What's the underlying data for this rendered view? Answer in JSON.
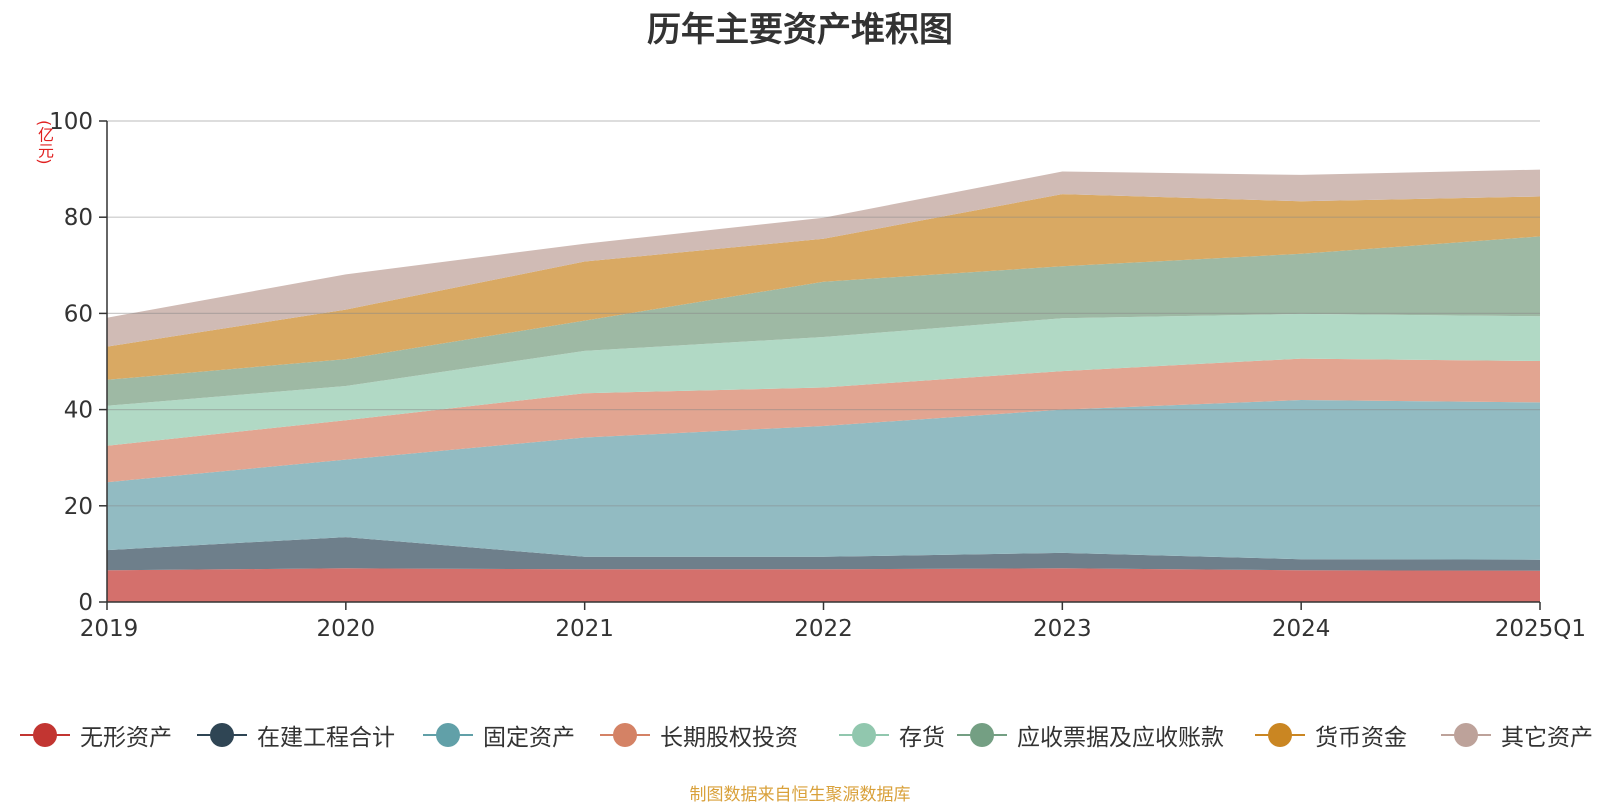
{
  "title": "历年主要资产堆积图",
  "unit_label": "(亿元)",
  "source": "制图数据来自恒生聚源数据库",
  "chart_data": {
    "type": "area",
    "stacked": true,
    "categories": [
      "2019",
      "2020",
      "2021",
      "2022",
      "2023",
      "2024",
      "2025Q1"
    ],
    "ylim": [
      0,
      100
    ],
    "yticks": [
      0,
      20,
      40,
      60,
      80,
      100
    ],
    "grid": true,
    "legend_position": "bottom",
    "series": [
      {
        "name": "无形资产",
        "color": "#c23531",
        "fill": "#d4706c",
        "values": [
          6.6,
          7.0,
          6.8,
          6.8,
          7.0,
          6.6,
          6.5
        ]
      },
      {
        "name": "在建工程合计",
        "color": "#2f4554",
        "fill": "#6e7f8b",
        "values": [
          4.2,
          6.5,
          2.6,
          2.6,
          3.2,
          2.3,
          2.3
        ]
      },
      {
        "name": "固定资产",
        "color": "#61a0a8",
        "fill": "#92bbc2",
        "values": [
          14.1,
          16.1,
          24.8,
          27.2,
          29.8,
          33.1,
          32.7
        ]
      },
      {
        "name": "长期股权投资",
        "color": "#d48265",
        "fill": "#e2a591",
        "values": [
          7.6,
          8.2,
          9.2,
          8.0,
          8.0,
          8.6,
          8.6
        ]
      },
      {
        "name": "存货",
        "color": "#91c7ae",
        "fill": "#b1d9c5",
        "values": [
          8.3,
          7.1,
          8.8,
          10.5,
          11.0,
          9.3,
          9.3
        ]
      },
      {
        "name": "应收票据及应收账款",
        "color": "#749f83",
        "fill": "#9eb9a4",
        "values": [
          5.4,
          5.6,
          6.3,
          11.5,
          10.8,
          12.5,
          16.6
        ]
      },
      {
        "name": "货币资金",
        "color": "#ca8622",
        "fill": "#d9a963",
        "values": [
          6.9,
          10.3,
          12.3,
          8.9,
          15.0,
          10.9,
          8.3
        ]
      },
      {
        "name": "其它资产",
        "color": "#bda29a",
        "fill": "#d0bbb5",
        "values": [
          6.0,
          7.3,
          3.7,
          4.4,
          4.7,
          5.5,
          5.6
        ]
      }
    ]
  }
}
